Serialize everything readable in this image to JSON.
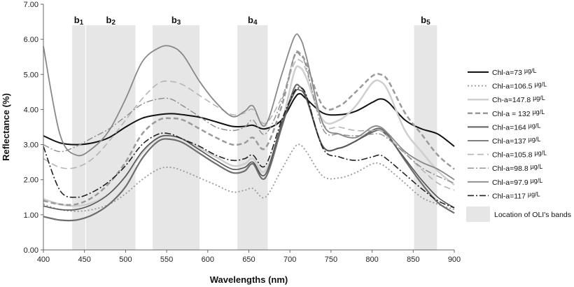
{
  "chart_data": {
    "type": "line",
    "xlabel": "Wavelengths (nm)",
    "ylabel": "Reflectance (%)",
    "xlim": [
      400,
      900
    ],
    "ylim": [
      0,
      7
    ],
    "x_ticks": [
      "400",
      "450",
      "500",
      "550",
      "600",
      "650",
      "700",
      "750",
      "800",
      "850",
      "900"
    ],
    "y_ticks": [
      "0.00",
      "1.00",
      "2.00",
      "3.00",
      "4.00",
      "5.00",
      "6.00",
      "7.00"
    ],
    "grid": false,
    "legend_position": "right",
    "bands": [
      {
        "label": "b",
        "sub": "1",
        "range": [
          435,
          451
        ]
      },
      {
        "label": "b",
        "sub": "2",
        "range": [
          452,
          512
        ]
      },
      {
        "label": "b",
        "sub": "3",
        "range": [
          533,
          590
        ]
      },
      {
        "label": "b",
        "sub": "4",
        "range": [
          636,
          673
        ]
      },
      {
        "label": "b",
        "sub": "5",
        "range": [
          851,
          879
        ]
      }
    ],
    "bands_legend_label": "Location of OLI's bands",
    "band_color": "#e6e6e6",
    "x": [
      400,
      420,
      440,
      460,
      480,
      500,
      520,
      540,
      555,
      570,
      590,
      610,
      630,
      645,
      655,
      670,
      690,
      705,
      712,
      720,
      740,
      760,
      780,
      800,
      810,
      820,
      840,
      860,
      880,
      900
    ],
    "series": [
      {
        "name": "Chl-a=73",
        "unit": "µg/L",
        "color": "#111111",
        "width": 2.0,
        "dash": "",
        "values": [
          3.25,
          3.05,
          3.0,
          3.05,
          3.2,
          3.5,
          3.75,
          3.85,
          3.88,
          3.85,
          3.78,
          3.65,
          3.52,
          3.52,
          3.55,
          3.45,
          3.7,
          4.3,
          4.45,
          4.3,
          3.9,
          3.85,
          3.95,
          4.2,
          4.3,
          4.2,
          3.7,
          3.45,
          3.3,
          2.95
        ]
      },
      {
        "name": "Chl-a=106.5",
        "unit": "µg/L",
        "color": "#999999",
        "width": 1.8,
        "dash": "2,3",
        "values": [
          1.3,
          1.15,
          1.1,
          1.15,
          1.3,
          1.6,
          2.0,
          2.3,
          2.35,
          2.25,
          2.05,
          1.85,
          1.65,
          1.7,
          1.75,
          1.5,
          2.3,
          2.9,
          3.0,
          2.8,
          2.1,
          2.05,
          2.2,
          2.45,
          2.45,
          2.3,
          1.9,
          1.5,
          1.3,
          1.15
        ]
      },
      {
        "name": "Ch-a=147.8",
        "unit": "µg/L",
        "color": "#cfcfcf",
        "width": 2.5,
        "dash": "",
        "values": [
          1.45,
          1.3,
          1.25,
          1.35,
          1.6,
          2.1,
          2.75,
          3.2,
          3.25,
          3.15,
          2.9,
          2.65,
          2.4,
          2.45,
          2.6,
          2.25,
          3.6,
          5.05,
          5.2,
          4.9,
          3.7,
          3.7,
          4.1,
          4.75,
          4.8,
          4.5,
          3.4,
          2.8,
          2.25,
          1.85
        ]
      },
      {
        "name": "Chl-a = 132",
        "unit": "µg/L",
        "color": "#9a9a9a",
        "width": 2.5,
        "dash": "7,4",
        "values": [
          1.4,
          1.3,
          1.3,
          1.5,
          1.9,
          2.5,
          3.3,
          3.7,
          3.75,
          3.7,
          3.45,
          3.2,
          3.0,
          3.05,
          3.2,
          2.9,
          4.1,
          5.5,
          5.6,
          5.3,
          4.1,
          4.1,
          4.5,
          4.95,
          5.0,
          4.8,
          3.9,
          3.3,
          2.7,
          2.3
        ]
      },
      {
        "name": "Chl-a=164",
        "unit": "µg/L",
        "color": "#6e6e6e",
        "width": 2.2,
        "dash": "",
        "values": [
          0.95,
          0.85,
          0.85,
          1.0,
          1.3,
          1.8,
          2.6,
          3.1,
          3.15,
          3.05,
          2.75,
          2.45,
          2.2,
          2.25,
          2.45,
          2.05,
          3.5,
          4.6,
          4.65,
          4.35,
          2.95,
          2.9,
          3.1,
          3.4,
          3.45,
          3.25,
          2.55,
          1.9,
          1.35,
          1.05
        ]
      },
      {
        "name": "Chl-a=137",
        "unit": "µg/L",
        "color": "#555555",
        "width": 1.6,
        "dash": "",
        "values": [
          1.25,
          1.15,
          1.15,
          1.3,
          1.6,
          2.1,
          2.8,
          3.2,
          3.25,
          3.15,
          2.85,
          2.55,
          2.3,
          2.35,
          2.5,
          2.15,
          3.6,
          4.45,
          4.55,
          4.3,
          2.95,
          2.9,
          3.1,
          3.35,
          3.4,
          3.2,
          2.6,
          2.0,
          1.5,
          1.2
        ]
      },
      {
        "name": "Chl-a=105.8",
        "unit": "µg/L",
        "color": "#b5b5b5",
        "width": 1.6,
        "dash": "9,5",
        "values": [
          2.6,
          2.35,
          2.35,
          2.6,
          3.1,
          3.7,
          4.3,
          4.75,
          4.8,
          4.7,
          4.4,
          4.1,
          3.85,
          3.9,
          4.0,
          3.6,
          4.35,
          5.3,
          5.4,
          5.1,
          3.6,
          3.5,
          3.4,
          3.4,
          3.4,
          3.2,
          2.75,
          2.3,
          1.9,
          1.7
        ]
      },
      {
        "name": "Chl-a=98.8",
        "unit": "µg/L",
        "color": "#8c8c8c",
        "width": 1.4,
        "dash": "9,3,2,3",
        "values": [
          3.0,
          2.8,
          2.95,
          3.2,
          3.45,
          3.8,
          4.15,
          4.3,
          4.3,
          4.1,
          3.8,
          3.5,
          3.4,
          3.5,
          3.7,
          3.3,
          4.25,
          5.5,
          5.55,
          5.2,
          3.45,
          3.3,
          3.25,
          3.3,
          3.3,
          3.15,
          2.75,
          2.35,
          2.1,
          1.9
        ]
      },
      {
        "name": "Chl-a=97.9",
        "unit": "µg/L",
        "color": "#888888",
        "width": 1.8,
        "dash": "",
        "values": [
          5.8,
          3.3,
          2.7,
          2.9,
          3.4,
          4.3,
          5.35,
          5.75,
          5.8,
          5.55,
          4.8,
          4.2,
          3.8,
          3.95,
          4.1,
          3.55,
          5.0,
          6.05,
          6.05,
          5.5,
          3.6,
          3.3,
          3.2,
          3.5,
          3.5,
          3.3,
          2.8,
          2.5,
          2.3,
          2.0
        ]
      },
      {
        "name": "Chl-a=117",
        "unit": "µg/L",
        "color": "#222222",
        "width": 1.6,
        "dash": "9,3,2,3",
        "values": [
          2.95,
          1.7,
          1.5,
          1.65,
          1.95,
          2.4,
          3.0,
          3.3,
          3.3,
          3.15,
          2.95,
          2.7,
          2.55,
          2.6,
          2.7,
          2.4,
          3.7,
          4.5,
          4.6,
          4.4,
          2.9,
          2.65,
          2.55,
          2.65,
          2.7,
          2.55,
          2.15,
          1.75,
          1.4,
          1.2
        ]
      }
    ]
  }
}
